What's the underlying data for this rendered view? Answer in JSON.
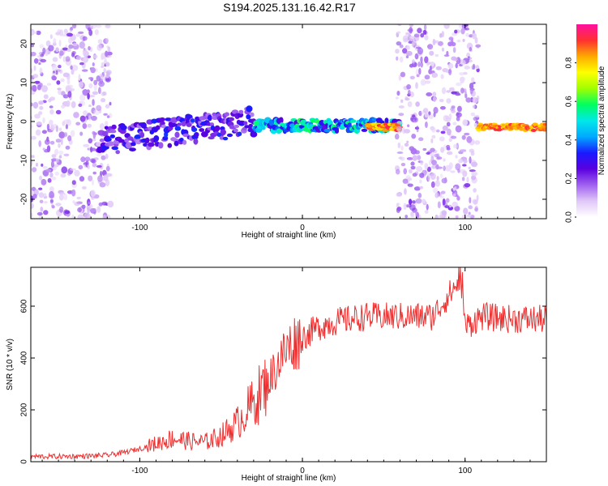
{
  "title": "S194.2025.131.16.42.R17",
  "colors": {
    "snr_line": "#ee3030",
    "axis": "#000000",
    "colormap": [
      "#ffffff",
      "#e0c8f8",
      "#a060f0",
      "#5a00e0",
      "#1a1aff",
      "#00aaff",
      "#00e8e8",
      "#00ff60",
      "#a0ff00",
      "#ffff00",
      "#ffaa00",
      "#ff3030",
      "#ff10a0"
    ]
  },
  "chart_data": [
    {
      "type": "heatmap",
      "xlabel": "Height of straight line (km)",
      "ylabel": "Frequency (Hz)",
      "xlim": [
        -167,
        150
      ],
      "ylim": [
        -25,
        25
      ],
      "x_ticks": [
        -100,
        0,
        100
      ],
      "y_ticks": [
        -20,
        -10,
        0,
        10,
        20
      ],
      "colorbar": {
        "label": "Normalized spectral amplitude",
        "range": [
          0,
          1
        ],
        "ticks": [
          "0.0",
          "0.2",
          "0.4",
          "0.6",
          "0.8"
        ]
      },
      "features": [
        {
          "x_range": [
            -167,
            -118
          ],
          "freq_range": [
            -25,
            25
          ],
          "amplitude": 0.15
        },
        {
          "x_range": [
            -125,
            -30
          ],
          "freq_center_start": -5,
          "freq_center_end": 0,
          "amplitude": 0.35
        },
        {
          "x_range": [
            -30,
            60
          ],
          "freq_center": -1,
          "amplitude": 0.6
        },
        {
          "x_range": [
            40,
            60
          ],
          "freq_center": -1.5,
          "amplitude": 0.95
        },
        {
          "x_range": [
            58,
            108
          ],
          "freq_range": [
            -25,
            25
          ],
          "amplitude": 0.15
        },
        {
          "x_range": [
            108,
            150
          ],
          "freq_center": -1.5,
          "amplitude": 0.95
        }
      ]
    },
    {
      "type": "line",
      "xlabel": "Height of straight line (km)",
      "ylabel": "SNR (10 * v/v)",
      "xlim": [
        -167,
        150
      ],
      "ylim": [
        0,
        750
      ],
      "x_ticks": [
        -100,
        0,
        100
      ],
      "y_ticks": [
        0,
        200,
        400,
        600
      ],
      "series": [
        {
          "x": [
            -167,
            -150,
            -130,
            -120,
            -110,
            -100,
            -90,
            -80,
            -70,
            -60,
            -50,
            -40,
            -30,
            -20,
            -15,
            -10,
            -5,
            0,
            5,
            10,
            20,
            30,
            40,
            60,
            80,
            97,
            100,
            110,
            130,
            150
          ],
          "y": [
            20,
            20,
            22,
            25,
            35,
            50,
            70,
            90,
            80,
            75,
            100,
            150,
            230,
            320,
            380,
            430,
            460,
            480,
            500,
            520,
            540,
            550,
            560,
            560,
            560,
            700,
            520,
            560,
            550,
            550
          ]
        }
      ]
    }
  ]
}
